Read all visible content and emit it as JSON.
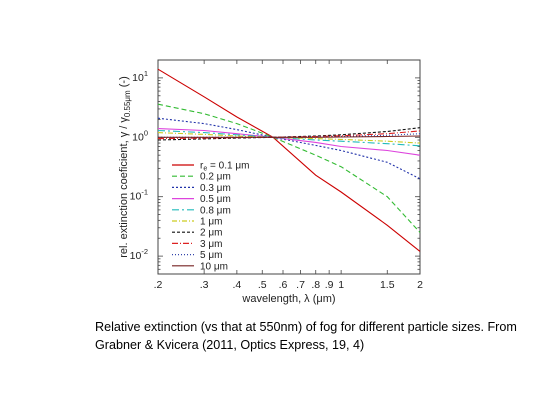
{
  "caption": {
    "line1": "Relative extinction (vs that at 550nm) of fog for different particle sizes. From",
    "line2": "Grabner & Kvicera (2011, Optics Express,  19, 4)"
  },
  "chart_data": {
    "type": "line",
    "xlabel": "wavelength, λ (μm)",
    "ylabel": "rel. extinction coeficient, γ / γ0.55μm (-)",
    "xscale": "log",
    "yscale": "log",
    "xlim": [
      0.2,
      2.0
    ],
    "ylim": [
      0.005,
      20
    ],
    "x_ticks": [
      ".2",
      ".3",
      ".4",
      ".5",
      ".6",
      ".7",
      ".8",
      ".9",
      "1",
      "1.5",
      "2"
    ],
    "x_tick_values": [
      0.2,
      0.3,
      0.4,
      0.5,
      0.6,
      0.7,
      0.8,
      0.9,
      1.0,
      1.5,
      2.0
    ],
    "y_ticks": [
      "10-2",
      "10-1",
      "100",
      "101"
    ],
    "y_tick_values": [
      0.01,
      0.1,
      1,
      10
    ],
    "grid": false,
    "legend_position": "bottom-left",
    "legend_var": "re",
    "series": [
      {
        "name": "re = 0.1 μm",
        "color": "#cc0000",
        "dash": "solid",
        "x": [
          0.2,
          0.3,
          0.4,
          0.55,
          0.8,
          1.0,
          1.5,
          2.0
        ],
        "y": [
          14.0,
          4.8,
          2.2,
          1.0,
          0.23,
          0.12,
          0.033,
          0.012
        ]
      },
      {
        "name": "0.2 μm",
        "color": "#33bb33",
        "dash": "5,3",
        "x": [
          0.2,
          0.3,
          0.4,
          0.55,
          0.8,
          1.0,
          1.5,
          2.0
        ],
        "y": [
          3.6,
          2.5,
          1.7,
          1.0,
          0.5,
          0.32,
          0.1,
          0.025
        ]
      },
      {
        "name": "0.3 μm",
        "color": "#2233aa",
        "dash": "2,2",
        "x": [
          0.2,
          0.3,
          0.4,
          0.55,
          0.8,
          1.0,
          1.5,
          2.0
        ],
        "y": [
          2.1,
          1.7,
          1.35,
          1.0,
          0.73,
          0.6,
          0.38,
          0.2
        ]
      },
      {
        "name": "0.5 μm",
        "color": "#dd44dd",
        "dash": "solid",
        "x": [
          0.2,
          0.3,
          0.4,
          0.55,
          0.8,
          1.0,
          1.5,
          2.0
        ],
        "y": [
          1.4,
          1.3,
          1.15,
          1.0,
          0.82,
          0.7,
          0.6,
          0.5
        ]
      },
      {
        "name": "0.8 μm",
        "color": "#22bbbb",
        "dash": "7,3,2,3",
        "x": [
          0.2,
          0.3,
          0.4,
          0.55,
          0.8,
          1.0,
          1.5,
          2.0
        ],
        "y": [
          1.3,
          1.2,
          1.1,
          1.0,
          0.9,
          0.86,
          0.78,
          0.72
        ]
      },
      {
        "name": "1 μm",
        "color": "#cccc22",
        "dash": "5,2,1,2",
        "x": [
          0.2,
          0.3,
          0.4,
          0.55,
          0.8,
          1.0,
          1.5,
          2.0
        ],
        "y": [
          1.2,
          1.12,
          1.05,
          1.0,
          0.95,
          0.92,
          0.86,
          0.8
        ]
      },
      {
        "name": "2 μm",
        "color": "#111111",
        "dash": "3,2",
        "x": [
          0.2,
          0.3,
          0.4,
          0.55,
          0.8,
          1.0,
          1.5,
          2.0
        ],
        "y": [
          0.9,
          0.94,
          0.97,
          1.0,
          1.05,
          1.1,
          1.25,
          1.45
        ]
      },
      {
        "name": "3 μm",
        "color": "#dd2222",
        "dash": "6,2,1,2",
        "x": [
          0.2,
          0.3,
          0.4,
          0.55,
          0.8,
          1.0,
          1.5,
          2.0
        ],
        "y": [
          0.95,
          0.97,
          0.99,
          1.0,
          1.03,
          1.06,
          1.15,
          1.28
        ]
      },
      {
        "name": "5 μm",
        "color": "#3344aa",
        "dash": "1,2",
        "x": [
          0.2,
          0.3,
          0.4,
          0.55,
          0.8,
          1.0,
          1.5,
          2.0
        ],
        "y": [
          1.0,
          1.0,
          1.0,
          1.0,
          1.01,
          1.03,
          1.08,
          1.15
        ]
      },
      {
        "name": "10 μm",
        "color": "#772222",
        "dash": "solid",
        "x": [
          0.2,
          0.3,
          0.4,
          0.55,
          0.8,
          1.0,
          1.5,
          2.0
        ],
        "y": [
          1.0,
          1.0,
          1.0,
          1.0,
          1.0,
          1.01,
          1.03,
          1.05
        ]
      }
    ]
  }
}
